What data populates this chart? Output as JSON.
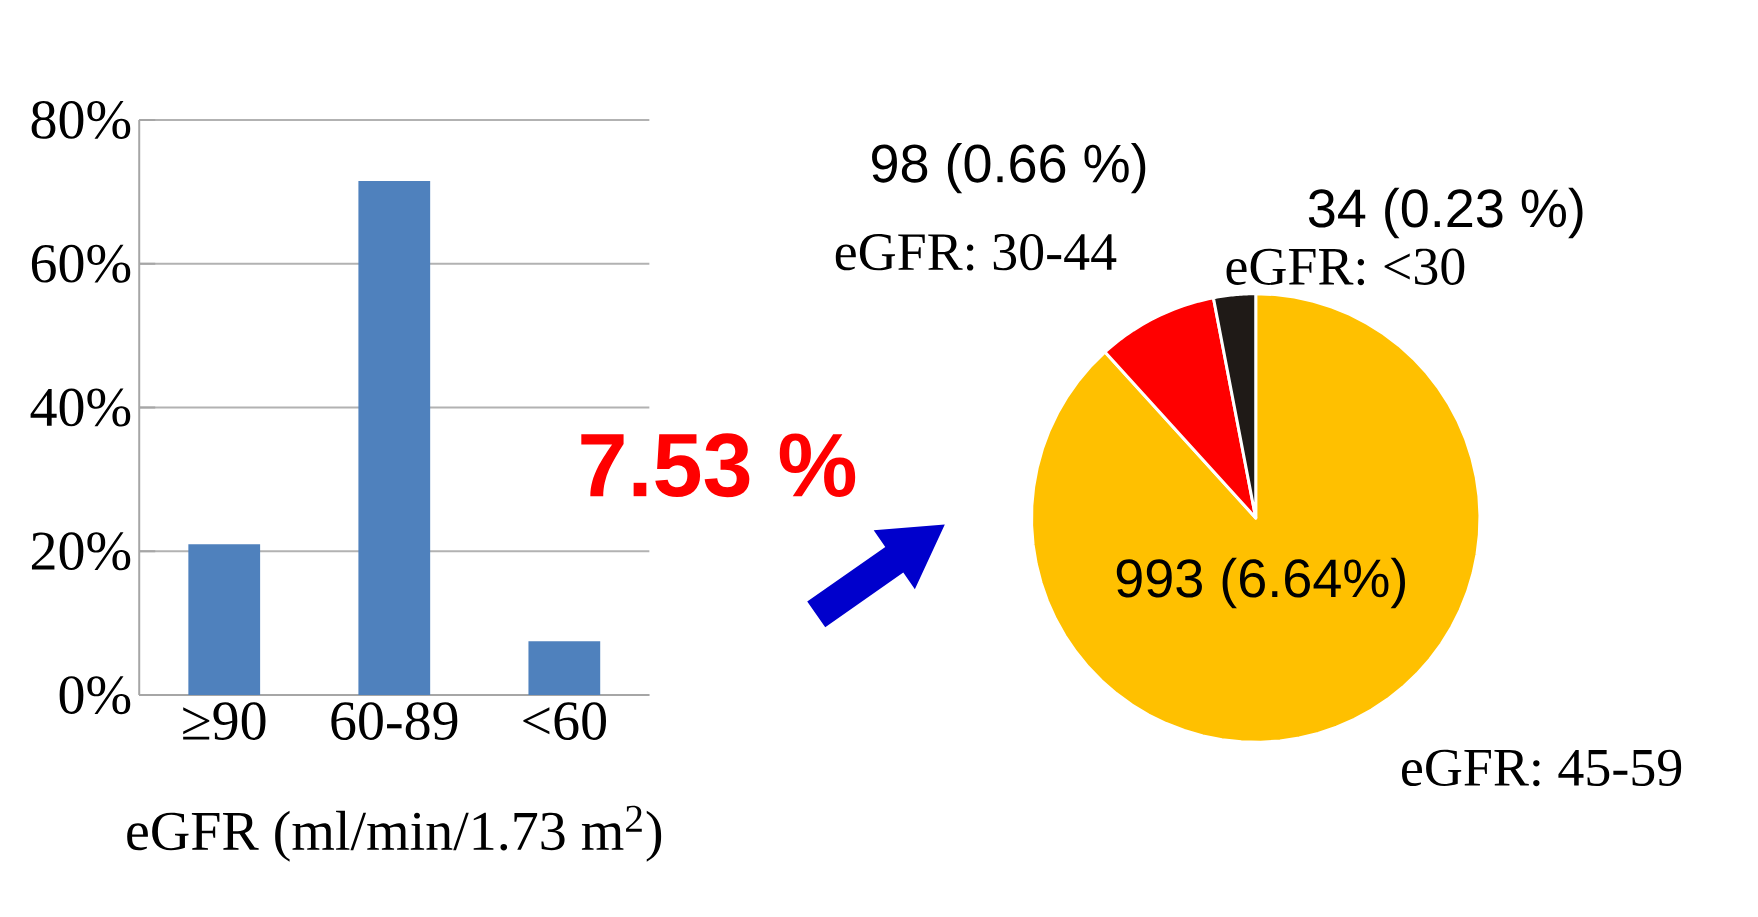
{
  "chart_data": [
    {
      "type": "bar",
      "categories": [
        "≥90",
        "60-89",
        "<60"
      ],
      "values": [
        21,
        71.5,
        7.5
      ],
      "color": "#4f81bd",
      "ylim": [
        0,
        80
      ],
      "yticks": [
        {
          "value": 0,
          "label": "0%"
        },
        {
          "value": 20,
          "label": "20%"
        },
        {
          "value": 40,
          "label": "40%"
        },
        {
          "value": 60,
          "label": "60%"
        },
        {
          "value": 80,
          "label": "80%"
        }
      ],
      "grid": "y",
      "xlabel": "eGFR (ml/min/1.73 m$^{2}$)",
      "annotations": [
        "7.53 %"
      ]
    },
    {
      "type": "pie",
      "categories": [
        "eGFR: 45-59",
        "eGFR: 30-44",
        "eGFR: <30"
      ],
      "values": [
        993,
        98,
        34
      ],
      "colors": [
        "#ffc000",
        "#ff0000",
        "#1f1a17"
      ],
      "value_labels": [
        "993 (6.64%)",
        "98 (0.66 %)",
        "34 (0.23 %)"
      ]
    }
  ]
}
